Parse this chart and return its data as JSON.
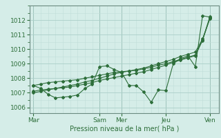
{
  "xlabel": "Pression niveau de la mer( hPa )",
  "bg_color": "#d5ede8",
  "grid_major_color": "#aacfc8",
  "grid_minor_color": "#c0ddd8",
  "line_color": "#2d6e3a",
  "sep_color": "#6a8a80",
  "ylim": [
    1005.6,
    1013.0
  ],
  "yticks": [
    1006,
    1007,
    1008,
    1009,
    1010,
    1011,
    1012
  ],
  "day_labels": [
    "Mar",
    "Sam",
    "Mer",
    "Jeu",
    "Ven"
  ],
  "day_positions": [
    0.0,
    0.375,
    0.5,
    0.75,
    1.0
  ],
  "xlim": [
    -0.02,
    1.05
  ],
  "series1_x": [
    0.0,
    0.042,
    0.083,
    0.125,
    0.167,
    0.208,
    0.25,
    0.292,
    0.333,
    0.375,
    0.417,
    0.458,
    0.5,
    0.542,
    0.583,
    0.625,
    0.667,
    0.708,
    0.75,
    0.792,
    0.833,
    0.875,
    0.917,
    0.958,
    1.0
  ],
  "series1_y": [
    1007.5,
    1007.6,
    1007.7,
    1007.75,
    1007.8,
    1007.85,
    1007.9,
    1008.0,
    1008.1,
    1008.2,
    1008.3,
    1008.4,
    1008.45,
    1008.5,
    1008.55,
    1008.65,
    1008.75,
    1008.9,
    1009.0,
    1009.15,
    1009.3,
    1009.45,
    1009.6,
    1010.65,
    1012.25
  ],
  "series2_x": [
    0.0,
    0.042,
    0.083,
    0.125,
    0.167,
    0.208,
    0.25,
    0.292,
    0.333,
    0.375,
    0.417,
    0.458,
    0.5,
    0.542,
    0.583,
    0.625,
    0.667,
    0.708,
    0.75,
    0.792,
    0.833,
    0.875,
    0.917,
    0.958,
    1.0
  ],
  "series2_y": [
    1007.0,
    1007.1,
    1007.2,
    1007.3,
    1007.4,
    1007.5,
    1007.6,
    1007.75,
    1007.85,
    1008.0,
    1008.15,
    1008.3,
    1008.4,
    1008.5,
    1008.6,
    1008.7,
    1008.85,
    1009.0,
    1009.15,
    1009.3,
    1009.5,
    1009.65,
    1009.8,
    1010.7,
    1012.1
  ],
  "series3_x": [
    0.0,
    0.042,
    0.083,
    0.125,
    0.167,
    0.208,
    0.25,
    0.292,
    0.333,
    0.375,
    0.417,
    0.458,
    0.5,
    0.542,
    0.583,
    0.625,
    0.667,
    0.708,
    0.75,
    0.792,
    0.833,
    0.875,
    0.917,
    0.958,
    1.0
  ],
  "series3_y": [
    1007.1,
    1007.2,
    1007.25,
    1007.3,
    1007.35,
    1007.4,
    1007.5,
    1007.6,
    1007.7,
    1007.85,
    1007.95,
    1008.05,
    1008.15,
    1008.25,
    1008.35,
    1008.45,
    1008.6,
    1008.75,
    1008.9,
    1009.1,
    1009.25,
    1009.4,
    1009.55,
    1010.6,
    1012.15
  ],
  "series4_x": [
    0.0,
    0.042,
    0.083,
    0.125,
    0.167,
    0.208,
    0.25,
    0.292,
    0.333,
    0.375,
    0.417,
    0.458,
    0.5,
    0.542,
    0.583,
    0.625,
    0.667,
    0.708,
    0.75,
    0.792,
    0.833,
    0.875,
    0.917,
    0.958,
    1.0
  ],
  "series4_y": [
    1007.5,
    1007.3,
    1006.9,
    1006.65,
    1006.7,
    1006.75,
    1006.85,
    1007.3,
    1007.6,
    1008.8,
    1008.85,
    1008.6,
    1008.4,
    1007.5,
    1007.5,
    1007.05,
    1006.35,
    1007.2,
    1007.15,
    1009.0,
    1009.35,
    1009.55,
    1008.8,
    1012.3,
    1012.2
  ]
}
